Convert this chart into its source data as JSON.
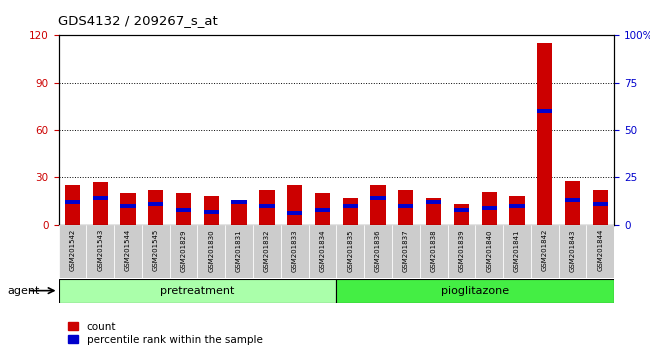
{
  "title": "GDS4132 / 209267_s_at",
  "samples": [
    "GSM201542",
    "GSM201543",
    "GSM201544",
    "GSM201545",
    "GSM201829",
    "GSM201830",
    "GSM201831",
    "GSM201832",
    "GSM201833",
    "GSM201834",
    "GSM201835",
    "GSM201836",
    "GSM201837",
    "GSM201838",
    "GSM201839",
    "GSM201840",
    "GSM201841",
    "GSM201842",
    "GSM201843",
    "GSM201844"
  ],
  "count_values": [
    25,
    27,
    20,
    22,
    20,
    18,
    16,
    22,
    25,
    20,
    17,
    25,
    22,
    17,
    13,
    21,
    18,
    115,
    28,
    22
  ],
  "percentile_values": [
    12,
    14,
    10,
    11,
    8,
    7,
    12,
    10,
    6,
    8,
    10,
    14,
    10,
    12,
    8,
    9,
    10,
    60,
    13,
    11
  ],
  "pretreatment_count": 10,
  "ylim_left": [
    0,
    120
  ],
  "ylim_right": [
    0,
    100
  ],
  "yticks_left": [
    0,
    30,
    60,
    90,
    120
  ],
  "yticks_right": [
    0,
    25,
    50,
    75,
    100
  ],
  "yticklabels_right": [
    "0",
    "25",
    "50",
    "75",
    "100%"
  ],
  "bar_color_red": "#CC0000",
  "bar_color_blue": "#0000CC",
  "bar_width": 0.55,
  "bg_color": "#FFFFFF",
  "plot_bg_color": "#FFFFFF",
  "tick_color_left": "#CC0000",
  "tick_color_right": "#0000CC",
  "grid_color": "#000000",
  "agent_label": "agent",
  "legend_count": "count",
  "legend_percentile": "percentile rank within the sample",
  "group_band_color_pre": "#AAFFAA",
  "group_band_color_pio": "#44EE44",
  "xticklabel_bg": "#CCCCCC",
  "blue_bar_height": 2.5
}
